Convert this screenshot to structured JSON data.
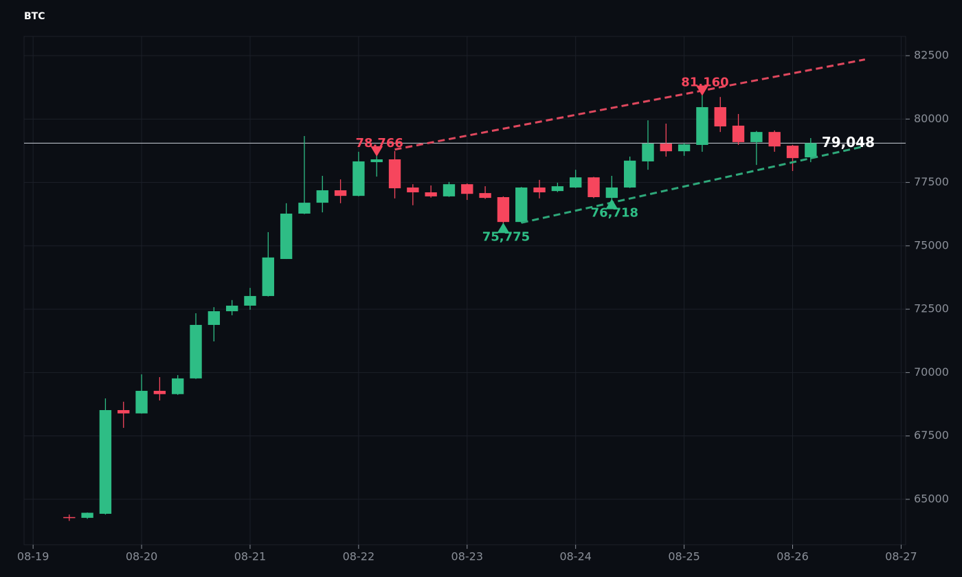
{
  "chart_data": {
    "type": "candlestick",
    "title": "BTC",
    "up_color": "#2ebd85",
    "down_color": "#f6465d",
    "grid": true,
    "x": [
      "08-19 08:00",
      "08-19 12:00",
      "08-19 16:00",
      "08-19 20:00",
      "08-20 00:00",
      "08-20 04:00",
      "08-20 08:00",
      "08-20 12:00",
      "08-20 16:00",
      "08-20 20:00",
      "08-21 00:00",
      "08-21 04:00",
      "08-21 08:00",
      "08-21 12:00",
      "08-21 16:00",
      "08-21 20:00",
      "08-22 00:00",
      "08-22 04:00",
      "08-22 08:00",
      "08-22 12:00",
      "08-22 16:00",
      "08-22 20:00",
      "08-23 00:00",
      "08-23 04:00",
      "08-23 08:00",
      "08-23 12:00",
      "08-23 16:00",
      "08-23 20:00",
      "08-24 00:00",
      "08-24 04:00",
      "08-24 08:00",
      "08-24 12:00",
      "08-24 16:00",
      "08-24 20:00",
      "08-25 00:00",
      "08-25 04:00",
      "08-25 08:00",
      "08-25 12:00",
      "08-25 16:00",
      "08-25 20:00",
      "08-26 00:00",
      "08-26 04:00"
    ],
    "open": [
      64300,
      64270,
      64430,
      68520,
      68390,
      69280,
      69150,
      69770,
      71880,
      72420,
      72640,
      73020,
      74480,
      76270,
      76700,
      77190,
      76970,
      78300,
      78410,
      77300,
      77110,
      76950,
      77430,
      77080,
      76920,
      75940,
      77300,
      77160,
      77300,
      77700,
      76890,
      77300,
      78330,
      79030,
      78730,
      78980,
      80470,
      79740,
      79090,
      79490,
      78950,
      78490
    ],
    "high": [
      64400,
      64480,
      68980,
      68850,
      69930,
      69820,
      69900,
      72340,
      72580,
      72860,
      73340,
      75540,
      76680,
      79330,
      77760,
      77620,
      78710,
      78766,
      78740,
      77430,
      77380,
      77520,
      77460,
      77350,
      76950,
      77320,
      77600,
      77490,
      78000,
      77720,
      77760,
      78520,
      79950,
      79820,
      79050,
      81160,
      80870,
      80200,
      79530,
      79550,
      78980,
      79250
    ],
    "low": [
      64150,
      64230,
      64400,
      67820,
      68380,
      68900,
      69120,
      69750,
      71230,
      72260,
      72480,
      73000,
      74480,
      76250,
      76320,
      76680,
      76950,
      77730,
      76870,
      76600,
      76900,
      76930,
      76810,
      76850,
      75775,
      75900,
      76870,
      77120,
      77280,
      76880,
      76718,
      77280,
      78000,
      78520,
      78550,
      78710,
      79490,
      78980,
      78190,
      78710,
      77950,
      78300
    ],
    "close": [
      64280,
      64470,
      68520,
      68390,
      69280,
      69150,
      69770,
      71880,
      72420,
      72640,
      73020,
      74540,
      76270,
      76700,
      77190,
      76970,
      78330,
      78410,
      77270,
      77110,
      76950,
      77430,
      77050,
      76890,
      75940,
      77300,
      77110,
      77350,
      77700,
      76920,
      77300,
      78360,
      79030,
      78730,
      79000,
      80470,
      79710,
      79090,
      79490,
      78920,
      78460,
      79048
    ],
    "xlim": [
      "08-18 22:00",
      "08-27 01:00"
    ],
    "xticks": [
      "08-19",
      "08-20",
      "08-21",
      "08-22",
      "08-23",
      "08-24",
      "08-25",
      "08-26",
      "08-27"
    ],
    "ylim": [
      63210,
      83260
    ],
    "yticks": [
      65000,
      67500,
      70000,
      72500,
      75000,
      77500,
      80000,
      82500
    ],
    "last_price": {
      "value": 79048,
      "label": "79,048"
    },
    "pivots": [
      {
        "x": "08-22 04:00",
        "value": 78766,
        "label": "78,766",
        "marker": "down",
        "color": "#f6465d"
      },
      {
        "x": "08-23 08:00",
        "value": 75775,
        "label": "75,775",
        "marker": "up",
        "color": "#2ebd85"
      },
      {
        "x": "08-24 08:00",
        "value": 76718,
        "label": "76,718",
        "marker": "up",
        "color": "#2ebd85"
      },
      {
        "x": "08-25 04:00",
        "value": 81160,
        "label": "81,160",
        "marker": "down",
        "color": "#f6465d"
      }
    ],
    "trendlines": [
      {
        "color": "#e0485e",
        "x": [
          "08-22 08:00",
          "08-26 16:00"
        ],
        "values": [
          78800,
          82350
        ]
      },
      {
        "color": "#2ea87a",
        "x": [
          "08-23 12:00",
          "08-26 16:00"
        ],
        "values": [
          75910,
          78930
        ]
      }
    ]
  }
}
